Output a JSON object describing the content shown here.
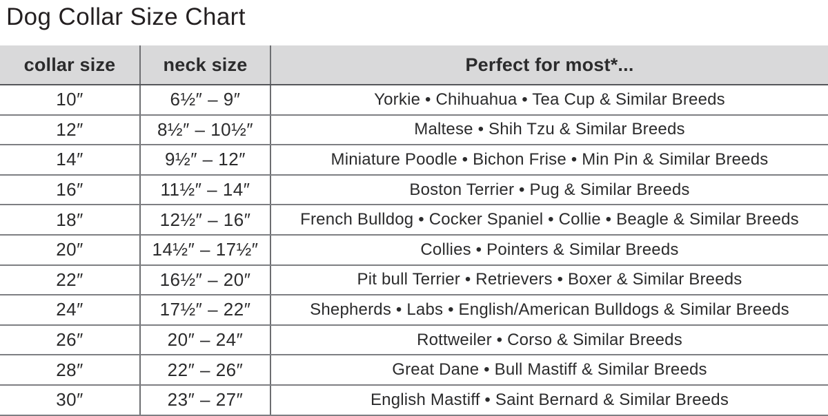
{
  "title": "Dog Collar Size Chart",
  "colors": {
    "header_bg": "#d9d9da",
    "text": "#2b2b2c",
    "grid_vertical": "#6d6e71",
    "grid_horizontal": "#7d7e82",
    "header_underline": "#55565a"
  },
  "chart_data": {
    "type": "table",
    "title": "Dog Collar Size Chart",
    "columns": [
      {
        "key": "collar",
        "label": "collar size"
      },
      {
        "key": "neck",
        "label": "neck size"
      },
      {
        "key": "breeds",
        "label": "Perfect for most*..."
      }
    ],
    "rows": [
      {
        "collar": "10″",
        "neck": "6½″ – 9″",
        "breeds": "Yorkie • Chihuahua • Tea Cup & Similar Breeds"
      },
      {
        "collar": "12″",
        "neck": "8½″ – 10½″",
        "breeds": "Maltese • Shih Tzu & Similar Breeds"
      },
      {
        "collar": "14″",
        "neck": "9½″ – 12″",
        "breeds": "Miniature Poodle • Bichon Frise • Min Pin & Similar Breeds"
      },
      {
        "collar": "16″",
        "neck": "11½″ – 14″",
        "breeds": "Boston Terrier • Pug & Similar Breeds"
      },
      {
        "collar": "18″",
        "neck": "12½″ – 16″",
        "breeds": "French Bulldog • Cocker Spaniel • Collie • Beagle & Similar Breeds"
      },
      {
        "collar": "20″",
        "neck": "14½″ – 17½″",
        "breeds": "Collies • Pointers & Similar Breeds"
      },
      {
        "collar": "22″",
        "neck": "16½″ – 20″",
        "breeds": "Pit bull Terrier • Retrievers • Boxer & Similar Breeds"
      },
      {
        "collar": "24″",
        "neck": "17½″ – 22″",
        "breeds": "Shepherds • Labs • English/American Bulldogs & Similar Breeds"
      },
      {
        "collar": "26″",
        "neck": "20″ – 24″",
        "breeds": "Rottweiler • Corso & Similar Breeds"
      },
      {
        "collar": "28″",
        "neck": "22″ – 26″",
        "breeds": "Great Dane • Bull Mastiff & Similar Breeds"
      },
      {
        "collar": "30″",
        "neck": "23″ – 27″",
        "breeds": "English Mastiff • Saint Bernard & Similar Breeds"
      }
    ]
  }
}
